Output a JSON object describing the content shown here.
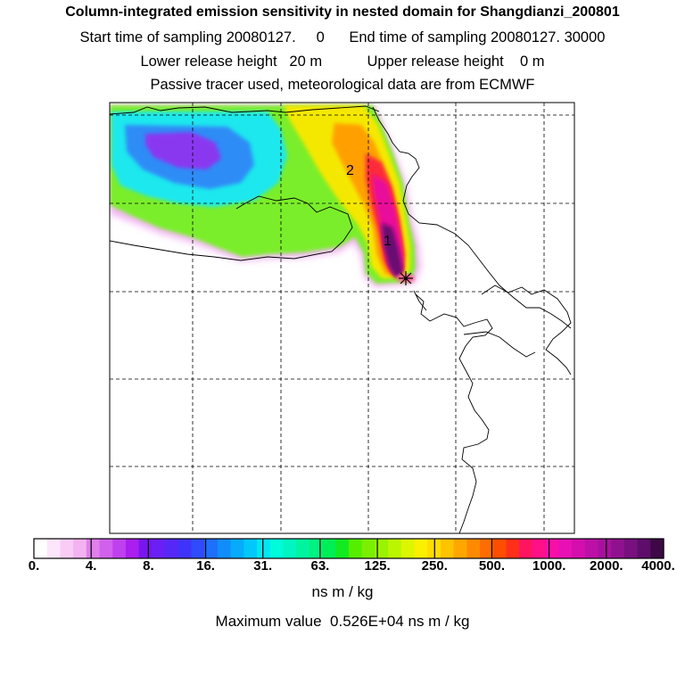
{
  "title": "Column-integrated emission sensitivity in nested domain for Shangdianzi_200801",
  "sampling": {
    "start_label": "Start time of sampling",
    "start_value": "20080127.",
    "start_hour": "0",
    "end_label": "End time of sampling",
    "end_value": "20080127. 30000"
  },
  "release": {
    "lower_label": "Lower release height",
    "lower_value": "20 m",
    "upper_label": "Upper release height",
    "upper_value": "0 m"
  },
  "subtitle": "Passive tracer used, meteorological data are from ECMWF",
  "chart_data": {
    "type": "heatmap",
    "title": "Column-integrated emission sensitivity in nested domain for Shangdianzi_200801",
    "colorbar": {
      "tick_labels": [
        "0.",
        "4.",
        "8.",
        "16.",
        "31.",
        "63.",
        "125.",
        "250.",
        "500.",
        "1000.",
        "2000.",
        "4000."
      ],
      "unit": "ns m / kg",
      "colors": [
        "#ffffff",
        "#fde6fb",
        "#f9ccf6",
        "#f3b3f1",
        "#e080ec",
        "#d161ec",
        "#bf40ee",
        "#aa1eef",
        "#7a15ee",
        "#6a20f5",
        "#5628f8",
        "#3f33fb",
        "#2f4bfc",
        "#1e6ffb",
        "#108dfb",
        "#06abfb",
        "#00c8fb",
        "#00e6f3",
        "#00fbdb",
        "#00f6c0",
        "#00f4a0",
        "#00f280",
        "#00ee55",
        "#13ea22",
        "#55ee00",
        "#7af000",
        "#9af300",
        "#bcf500",
        "#dcf600",
        "#fbf000",
        "#ffdd00",
        "#ffc300",
        "#ffa600",
        "#ff8a00",
        "#ff6d00",
        "#ff4d00",
        "#ff2f1a",
        "#ff1460",
        "#ff0f88",
        "#f80fa8",
        "#e810b4",
        "#d40fae",
        "#bc10a6",
        "#a8119e",
        "#901190",
        "#781080",
        "#5e0d6a",
        "#3d0845"
      ]
    },
    "max_value_label": "Maximum value",
    "max_value": "0.526E+04 ns m / kg",
    "contour_labels": [
      "2",
      "1"
    ],
    "receptor_marker": "Shangdianzi",
    "grid": true,
    "map": "coastlines"
  },
  "colors": {
    "frame": "#000000",
    "grid": "#000000"
  }
}
